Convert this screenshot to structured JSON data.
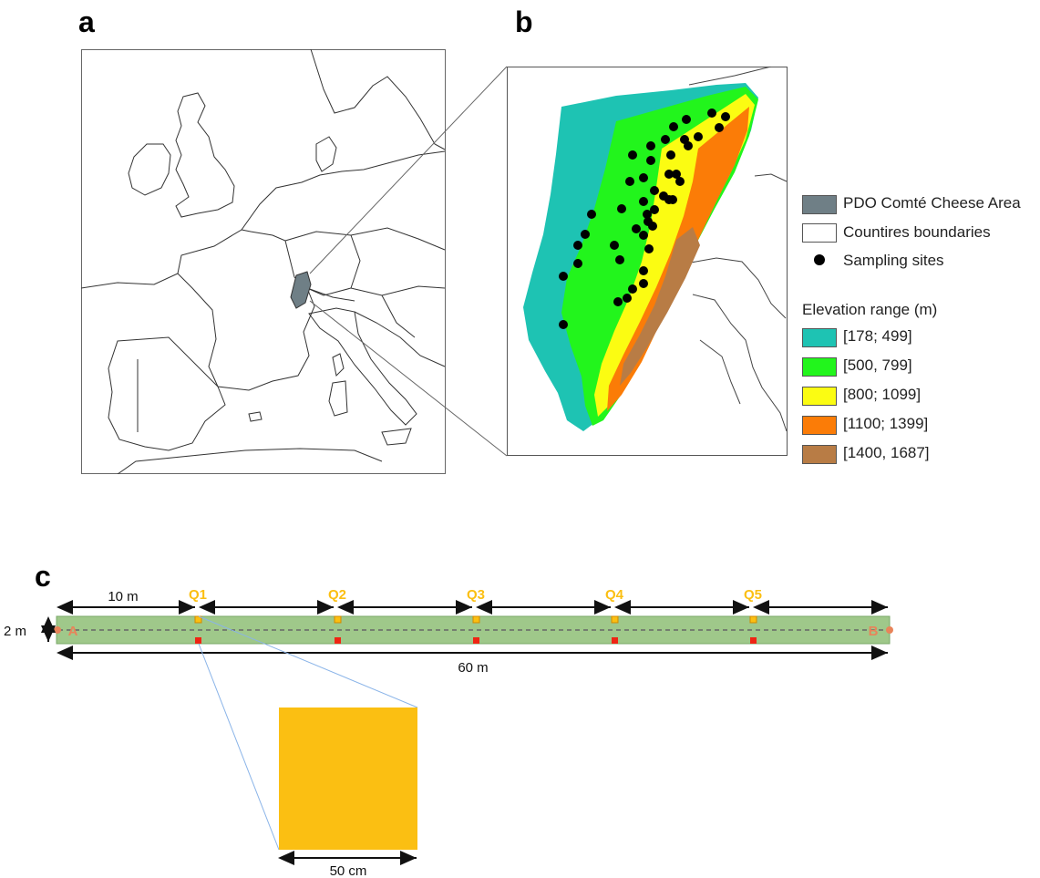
{
  "panel_labels": {
    "a": "a",
    "b": "b",
    "c": "c"
  },
  "legend": {
    "items": [
      {
        "label": "PDO Comté Cheese Area",
        "kind": "swatch",
        "color": "#6f7f86"
      },
      {
        "label": "Countires boundaries",
        "kind": "swatch",
        "color": "#ffffff"
      },
      {
        "label": "Sampling sites",
        "kind": "dot",
        "color": "#000000"
      }
    ],
    "elevation_title": "Elevation range (m)",
    "elevation_ranges": [
      {
        "label": "[178; 499]",
        "color": "#1ec3b3"
      },
      {
        "label": "[500, 799]",
        "color": "#22f51c"
      },
      {
        "label": "[800; 1099]",
        "color": "#fbfc12"
      },
      {
        "label": "[1100; 1399]",
        "color": "#fb7c07"
      },
      {
        "label": "[1400, 1687]",
        "color": "#b87c45"
      }
    ]
  },
  "transect": {
    "quadrats": [
      "Q1",
      "Q2",
      "Q3",
      "Q4",
      "Q5"
    ],
    "start_label": "A",
    "end_label": "B",
    "spacing_label": "10 m",
    "width_label": "2 m",
    "length_label": "60 m",
    "quadrat_size_label": "50 cm",
    "colors": {
      "strip": "#9fc88a",
      "quadrat": "#fbbf12",
      "marker": "#ef2414",
      "endpoint": "#e8845a"
    }
  }
}
